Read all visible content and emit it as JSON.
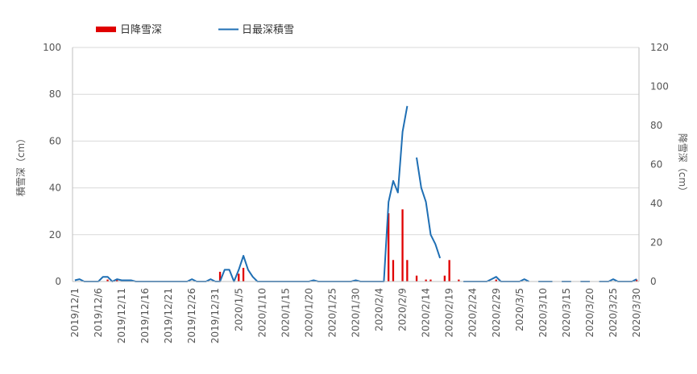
{
  "chart_data": {
    "type": "bar+line",
    "legend": {
      "placement": "top-left",
      "bar_label": "日降雪深",
      "line_label": "日最深積雪"
    },
    "left_axis": {
      "label": "積雪深（cm）",
      "ylim": [
        0,
        100
      ],
      "ticks": [
        0,
        20,
        40,
        60,
        80,
        100
      ]
    },
    "right_axis": {
      "label": "降雪深（cm）",
      "ylim": [
        0,
        120
      ],
      "ticks": [
        0,
        20,
        40,
        60,
        80,
        100,
        120
      ]
    },
    "x_tick_labels": [
      "2019/12/1",
      "2019/12/6",
      "2019/12/11",
      "2019/12/16",
      "2019/12/21",
      "2019/12/26",
      "2019/12/31",
      "2020/1/5",
      "2020/1/10",
      "2020/1/15",
      "2020/1/20",
      "2020/1/25",
      "2020/1/30",
      "2020/2/4",
      "2020/2/9",
      "2020/2/14",
      "2020/2/19",
      "2020/2/24",
      "2020/2/29",
      "2020/3/5",
      "2020/3/10",
      "2020/3/15",
      "2020/3/20",
      "2020/3/25",
      "2020/3/30"
    ],
    "grid": true,
    "colors": {
      "bar": "#e00000",
      "line": "#1f6fb4",
      "grid": "#d9d9d9",
      "axis": "#bfbfbf"
    },
    "series": [
      {
        "name": "日降雪深",
        "type": "bar",
        "axis": "right",
        "points": [
          {
            "date": "2019/12/8",
            "value": 1
          },
          {
            "date": "2019/12/10",
            "value": 1
          },
          {
            "date": "2020/1/1",
            "value": 5
          },
          {
            "date": "2020/1/5",
            "value": 4
          },
          {
            "date": "2020/1/6",
            "value": 7
          },
          {
            "date": "2020/2/6",
            "value": 35
          },
          {
            "date": "2020/2/7",
            "value": 11
          },
          {
            "date": "2020/2/9",
            "value": 37
          },
          {
            "date": "2020/2/10",
            "value": 11
          },
          {
            "date": "2020/2/12",
            "value": 3
          },
          {
            "date": "2020/2/14",
            "value": 1
          },
          {
            "date": "2020/2/15",
            "value": 1
          },
          {
            "date": "2020/2/18",
            "value": 3
          },
          {
            "date": "2020/2/19",
            "value": 11
          },
          {
            "date": "2020/2/21",
            "value": 1
          },
          {
            "date": "2020/2/29",
            "value": 1
          },
          {
            "date": "2020/3/30",
            "value": 1
          }
        ]
      },
      {
        "name": "日最深積雪",
        "type": "line",
        "axis": "left",
        "segments": [
          [
            {
              "date": "2019/12/1",
              "value": 0.5
            },
            {
              "date": "2019/12/2",
              "value": 1
            },
            {
              "date": "2019/12/3",
              "value": 0
            },
            {
              "date": "2019/12/4",
              "value": 0
            },
            {
              "date": "2019/12/5",
              "value": 0
            },
            {
              "date": "2019/12/6",
              "value": 0
            },
            {
              "date": "2019/12/7",
              "value": 2
            },
            {
              "date": "2019/12/8",
              "value": 2
            },
            {
              "date": "2019/12/9",
              "value": 0
            },
            {
              "date": "2019/12/10",
              "value": 1
            },
            {
              "date": "2019/12/11",
              "value": 0.5
            },
            {
              "date": "2019/12/12",
              "value": 0.5
            },
            {
              "date": "2019/12/13",
              "value": 0.5
            },
            {
              "date": "2019/12/14",
              "value": 0
            },
            {
              "date": "2019/12/25",
              "value": 0
            },
            {
              "date": "2019/12/26",
              "value": 1
            },
            {
              "date": "2019/12/27",
              "value": 0
            },
            {
              "date": "2019/12/29",
              "value": 0
            },
            {
              "date": "2019/12/30",
              "value": 1
            },
            {
              "date": "2019/12/31",
              "value": 0
            },
            {
              "date": "2020/1/1",
              "value": 0
            },
            {
              "date": "2020/1/2",
              "value": 5
            },
            {
              "date": "2020/1/3",
              "value": 5
            },
            {
              "date": "2020/1/4",
              "value": 0
            },
            {
              "date": "2020/1/5",
              "value": 5
            },
            {
              "date": "2020/1/6",
              "value": 11
            },
            {
              "date": "2020/1/7",
              "value": 5
            },
            {
              "date": "2020/1/8",
              "value": 2
            },
            {
              "date": "2020/1/9",
              "value": 0
            },
            {
              "date": "2020/1/20",
              "value": 0
            },
            {
              "date": "2020/1/21",
              "value": 0.5
            },
            {
              "date": "2020/1/22",
              "value": 0
            },
            {
              "date": "2020/1/29",
              "value": 0
            },
            {
              "date": "2020/1/30",
              "value": 0.5
            },
            {
              "date": "2020/1/31",
              "value": 0
            },
            {
              "date": "2020/2/5",
              "value": 0
            },
            {
              "date": "2020/2/6",
              "value": 34
            },
            {
              "date": "2020/2/7",
              "value": 43
            },
            {
              "date": "2020/2/8",
              "value": 38
            },
            {
              "date": "2020/2/9",
              "value": 64
            },
            {
              "date": "2020/2/10",
              "value": 75
            }
          ],
          [
            {
              "date": "2020/2/12",
              "value": 53
            },
            {
              "date": "2020/2/13",
              "value": 40
            },
            {
              "date": "2020/2/14",
              "value": 34
            },
            {
              "date": "2020/2/15",
              "value": 20
            },
            {
              "date": "2020/2/16",
              "value": 16
            },
            {
              "date": "2020/2/17",
              "value": 10
            }
          ],
          [
            {
              "date": "2020/2/22",
              "value": 0
            },
            {
              "date": "2020/2/27",
              "value": 0
            },
            {
              "date": "2020/2/28",
              "value": 1
            },
            {
              "date": "2020/2/29",
              "value": 2
            },
            {
              "date": "2020/3/1",
              "value": 0
            },
            {
              "date": "2020/3/5",
              "value": 0
            },
            {
              "date": "2020/3/6",
              "value": 1
            },
            {
              "date": "2020/3/7",
              "value": 0
            }
          ],
          [
            {
              "date": "2020/3/9",
              "value": 0
            },
            {
              "date": "2020/3/11",
              "value": 0
            },
            {
              "date": "2020/3/12",
              "value": 0
            }
          ],
          [
            {
              "date": "2020/3/14",
              "value": 0
            },
            {
              "date": "2020/3/15",
              "value": 0
            },
            {
              "date": "2020/3/16",
              "value": 0
            }
          ],
          [
            {
              "date": "2020/3/18",
              "value": 0
            },
            {
              "date": "2020/3/19",
              "value": 0
            },
            {
              "date": "2020/3/20",
              "value": 0
            }
          ],
          [
            {
              "date": "2020/3/22",
              "value": 0
            },
            {
              "date": "2020/3/24",
              "value": 0
            },
            {
              "date": "2020/3/25",
              "value": 1
            },
            {
              "date": "2020/3/26",
              "value": 0
            },
            {
              "date": "2020/3/29",
              "value": 0
            },
            {
              "date": "2020/3/30",
              "value": 1
            }
          ]
        ]
      }
    ]
  }
}
